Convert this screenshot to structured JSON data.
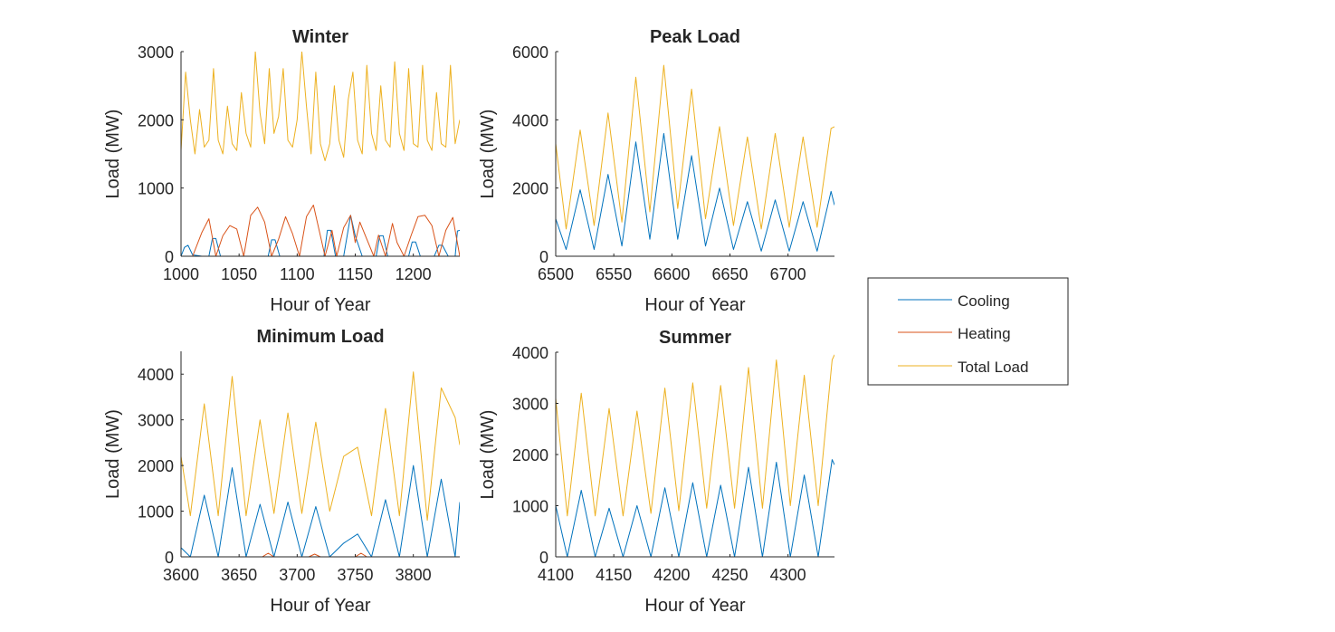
{
  "figure": {
    "legend": {
      "placement": "right",
      "entries": [
        {
          "label": "Cooling",
          "color": "#0072BD"
        },
        {
          "label": "Heating",
          "color": "#D95319"
        },
        {
          "label": "Total Load",
          "color": "#EDB120"
        }
      ]
    }
  },
  "chart_data": [
    {
      "type": "line",
      "title": "Winter",
      "xlabel": "Hour of Year",
      "ylabel": "Load (MW)",
      "xlim": [
        1000,
        1240
      ],
      "ylim": [
        0,
        3000
      ],
      "xticks": [
        "1000",
        "1050",
        "1100",
        "1150",
        "1200"
      ],
      "yticks": [
        "0",
        "1000",
        "2000",
        "3000"
      ],
      "series": [
        {
          "name": "Cooling",
          "color": "#0072BD",
          "x": [
            1000,
            1003,
            1006,
            1010,
            1018,
            1024,
            1027,
            1030,
            1034,
            1060,
            1075,
            1078,
            1081,
            1085,
            1115,
            1123,
            1126,
            1129,
            1133,
            1140,
            1146,
            1150,
            1156,
            1168,
            1171,
            1174,
            1178,
            1190,
            1196,
            1199,
            1202,
            1206,
            1218,
            1222,
            1225,
            1230,
            1236,
            1238,
            1240
          ],
          "y": [
            0,
            130,
            160,
            20,
            0,
            0,
            260,
            260,
            0,
            0,
            0,
            240,
            240,
            0,
            0,
            0,
            380,
            380,
            0,
            0,
            600,
            300,
            0,
            0,
            300,
            300,
            0,
            0,
            0,
            210,
            210,
            0,
            0,
            160,
            160,
            0,
            0,
            370,
            380
          ]
        },
        {
          "name": "Heating",
          "color": "#D95319",
          "x": [
            1000,
            1010,
            1018,
            1024,
            1030,
            1036,
            1042,
            1048,
            1054,
            1060,
            1066,
            1072,
            1078,
            1084,
            1090,
            1096,
            1102,
            1108,
            1114,
            1120,
            1124,
            1130,
            1134,
            1140,
            1146,
            1150,
            1154,
            1160,
            1166,
            1170,
            1176,
            1182,
            1186,
            1192,
            1198,
            1204,
            1210,
            1216,
            1222,
            1228,
            1234,
            1240
          ],
          "y": [
            0,
            0,
            350,
            550,
            0,
            300,
            450,
            400,
            0,
            600,
            720,
            500,
            0,
            250,
            580,
            330,
            0,
            580,
            750,
            300,
            0,
            380,
            0,
            420,
            600,
            200,
            500,
            250,
            0,
            310,
            0,
            480,
            200,
            0,
            300,
            580,
            600,
            450,
            0,
            380,
            570,
            0
          ]
        },
        {
          "name": "Total Load",
          "color": "#EDB120",
          "x": [
            1000,
            1004,
            1008,
            1012,
            1016,
            1020,
            1024,
            1028,
            1032,
            1036,
            1040,
            1044,
            1048,
            1052,
            1056,
            1060,
            1064,
            1068,
            1072,
            1076,
            1080,
            1084,
            1088,
            1092,
            1096,
            1100,
            1104,
            1108,
            1112,
            1116,
            1120,
            1124,
            1128,
            1132,
            1136,
            1140,
            1144,
            1148,
            1152,
            1156,
            1160,
            1164,
            1168,
            1172,
            1176,
            1180,
            1184,
            1188,
            1192,
            1196,
            1200,
            1204,
            1208,
            1212,
            1216,
            1220,
            1224,
            1228,
            1232,
            1236,
            1240
          ],
          "y": [
            1550,
            2700,
            2000,
            1500,
            2150,
            1600,
            1700,
            2750,
            1700,
            1500,
            2200,
            1650,
            1550,
            2400,
            1800,
            1600,
            3000,
            2100,
            1650,
            2750,
            1800,
            2050,
            2750,
            1700,
            1600,
            2000,
            3000,
            2200,
            1500,
            2700,
            1650,
            1400,
            1650,
            2500,
            1700,
            1450,
            2300,
            2700,
            1700,
            1500,
            2800,
            1800,
            1550,
            2500,
            1700,
            1600,
            2850,
            1800,
            1550,
            2750,
            1650,
            1600,
            2800,
            1700,
            1550,
            2400,
            1650,
            1600,
            2800,
            1650,
            2000
          ]
        }
      ]
    },
    {
      "type": "line",
      "title": "Peak Load",
      "xlabel": "Hour of Year",
      "ylabel": "Load (MW)",
      "xlim": [
        6500,
        6740
      ],
      "ylim": [
        0,
        6000
      ],
      "xticks": [
        "6500",
        "6550",
        "6600",
        "6650",
        "6700"
      ],
      "yticks": [
        "0",
        "2000",
        "4000",
        "6000"
      ],
      "series": [
        {
          "name": "Cooling",
          "color": "#0072BD",
          "x": [
            6500,
            6509,
            6521,
            6533,
            6545,
            6557,
            6569,
            6581,
            6593,
            6605,
            6617,
            6629,
            6641,
            6653,
            6665,
            6677,
            6689,
            6701,
            6713,
            6725,
            6737,
            6740
          ],
          "y": [
            1100,
            200,
            1950,
            200,
            2400,
            300,
            3350,
            500,
            3600,
            500,
            2950,
            300,
            2000,
            200,
            1600,
            150,
            1650,
            150,
            1600,
            150,
            1900,
            1500
          ]
        },
        {
          "name": "Heating",
          "color": "#D95319",
          "x": [
            6500,
            6740
          ],
          "y": [
            0,
            0
          ]
        },
        {
          "name": "Total Load",
          "color": "#EDB120",
          "x": [
            6500,
            6509,
            6521,
            6533,
            6545,
            6557,
            6569,
            6581,
            6593,
            6605,
            6617,
            6629,
            6641,
            6653,
            6665,
            6677,
            6689,
            6701,
            6713,
            6725,
            6737,
            6740
          ],
          "y": [
            3300,
            800,
            3700,
            900,
            4200,
            1000,
            5250,
            1300,
            5600,
            1400,
            4900,
            1100,
            3800,
            900,
            3500,
            800,
            3600,
            850,
            3500,
            850,
            3750,
            3800
          ]
        }
      ]
    },
    {
      "type": "line",
      "title": "Minimum Load",
      "xlabel": "Hour of Year",
      "ylabel": "Load (MW)",
      "xlim": [
        3600,
        3840
      ],
      "ylim": [
        0,
        4500
      ],
      "xticks": [
        "3600",
        "3650",
        "3700",
        "3750",
        "3800"
      ],
      "yticks": [
        "0",
        "1000",
        "2000",
        "3000",
        "4000"
      ],
      "series": [
        {
          "name": "Cooling",
          "color": "#0072BD",
          "x": [
            3600,
            3608,
            3620,
            3632,
            3644,
            3656,
            3668,
            3680,
            3692,
            3704,
            3716,
            3728,
            3740,
            3752,
            3764,
            3776,
            3788,
            3800,
            3812,
            3824,
            3836,
            3840
          ],
          "y": [
            200,
            0,
            1350,
            0,
            1950,
            0,
            1150,
            0,
            1200,
            0,
            1100,
            0,
            300,
            500,
            0,
            1250,
            0,
            2000,
            0,
            1700,
            0,
            1200
          ]
        },
        {
          "name": "Heating",
          "color": "#D95319",
          "x": [
            3600,
            3670,
            3675,
            3680,
            3710,
            3715,
            3720,
            3750,
            3755,
            3760,
            3840
          ],
          "y": [
            0,
            0,
            80,
            0,
            0,
            60,
            0,
            0,
            80,
            0,
            0
          ]
        },
        {
          "name": "Total Load",
          "color": "#EDB120",
          "x": [
            3600,
            3608,
            3620,
            3632,
            3644,
            3656,
            3668,
            3680,
            3692,
            3704,
            3716,
            3728,
            3740,
            3752,
            3764,
            3776,
            3788,
            3800,
            3812,
            3824,
            3836,
            3840
          ],
          "y": [
            2200,
            900,
            3350,
            900,
            3950,
            900,
            3000,
            950,
            3150,
            950,
            2950,
            1000,
            2200,
            2400,
            900,
            3250,
            900,
            4050,
            800,
            3700,
            3050,
            2450
          ]
        }
      ]
    },
    {
      "type": "line",
      "title": "Summer",
      "xlabel": "Hour of Year",
      "ylabel": "Load (MW)",
      "xlim": [
        4100,
        4340
      ],
      "ylim": [
        0,
        4000
      ],
      "xticks": [
        "4100",
        "4150",
        "4200",
        "4250",
        "4300"
      ],
      "yticks": [
        "0",
        "1000",
        "2000",
        "3000",
        "4000"
      ],
      "series": [
        {
          "name": "Cooling",
          "color": "#0072BD",
          "x": [
            4100,
            4110,
            4122,
            4134,
            4146,
            4158,
            4170,
            4182,
            4194,
            4206,
            4218,
            4230,
            4242,
            4254,
            4266,
            4278,
            4290,
            4302,
            4314,
            4326,
            4338,
            4340
          ],
          "y": [
            1000,
            0,
            1300,
            0,
            950,
            0,
            1000,
            0,
            1350,
            0,
            1450,
            0,
            1400,
            0,
            1750,
            0,
            1850,
            0,
            1600,
            0,
            1900,
            1800
          ]
        },
        {
          "name": "Heating",
          "color": "#D95319",
          "x": [
            4100,
            4340
          ],
          "y": [
            0,
            0
          ]
        },
        {
          "name": "Total Load",
          "color": "#EDB120",
          "x": [
            4100,
            4110,
            4122,
            4134,
            4146,
            4158,
            4170,
            4182,
            4194,
            4206,
            4218,
            4230,
            4242,
            4254,
            4266,
            4278,
            4290,
            4302,
            4314,
            4326,
            4338,
            4340
          ],
          "y": [
            3100,
            800,
            3200,
            800,
            2900,
            800,
            2850,
            850,
            3300,
            900,
            3400,
            950,
            3350,
            950,
            3700,
            950,
            3850,
            1000,
            3550,
            1000,
            3850,
            3950
          ]
        }
      ]
    }
  ]
}
